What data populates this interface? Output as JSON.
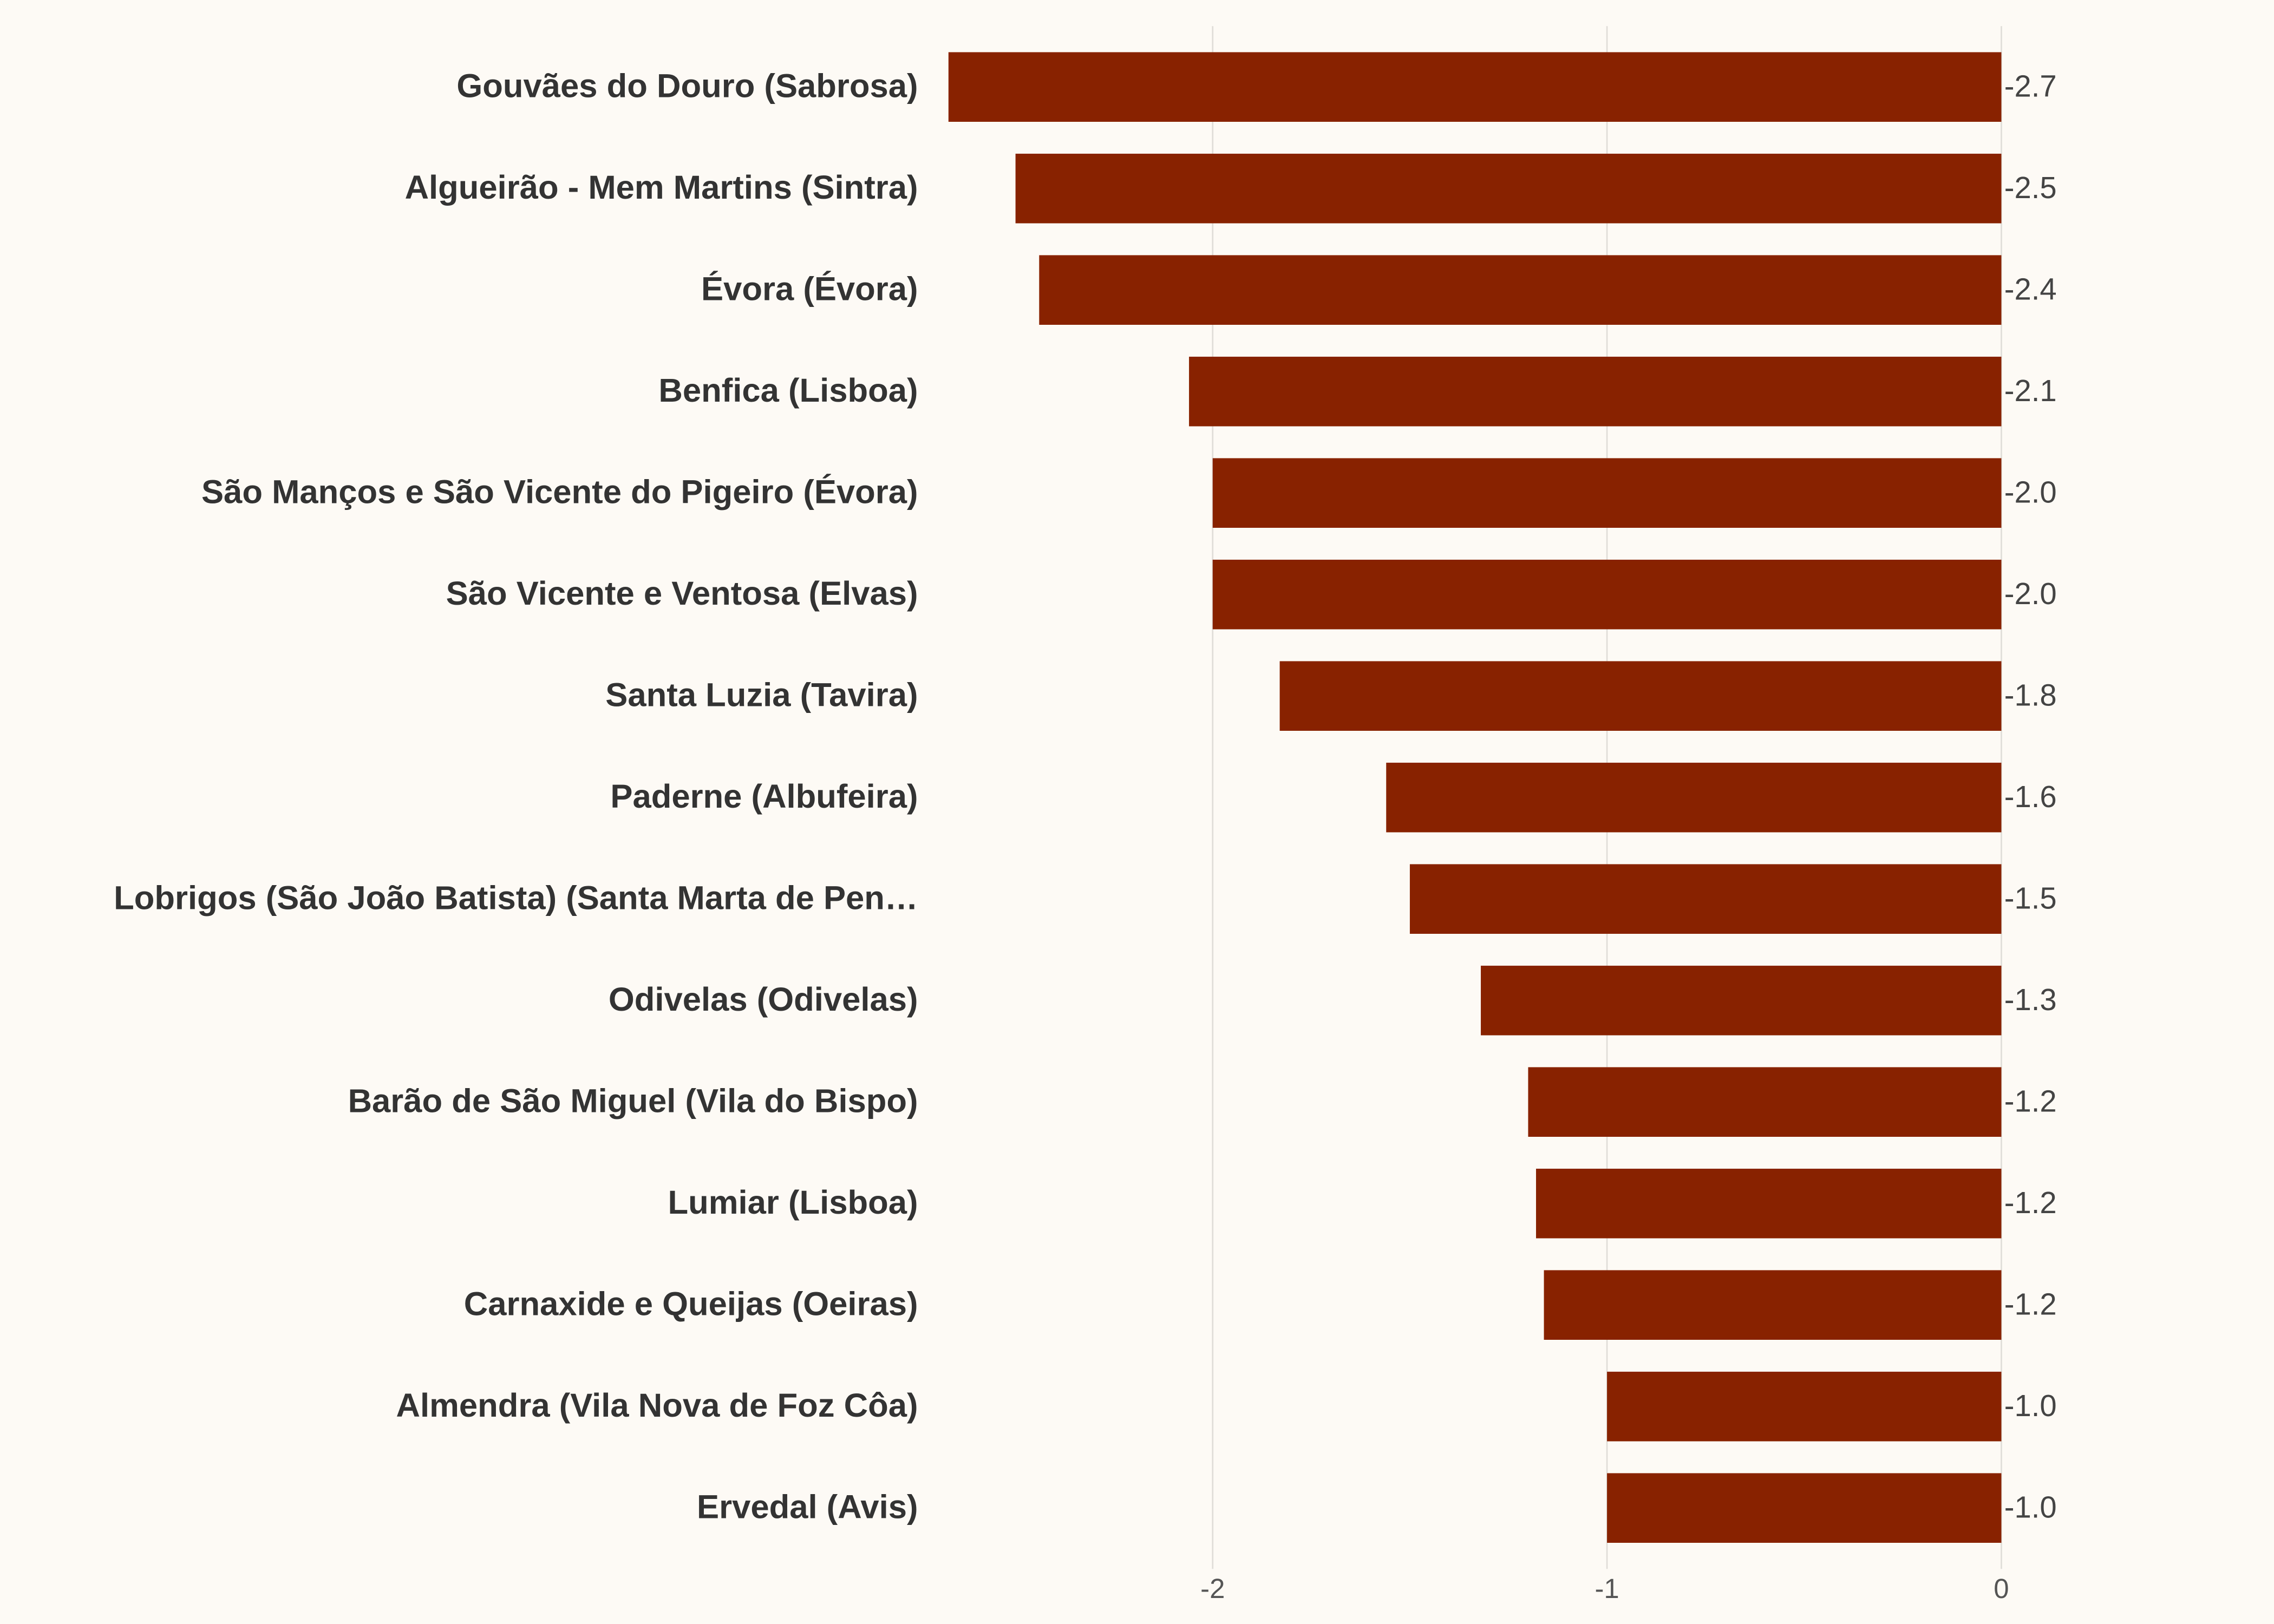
{
  "chart_data": {
    "type": "bar",
    "orientation": "horizontal",
    "categories": [
      "Gouvães do Douro (Sabrosa)",
      "Algueirão - Mem Martins (Sintra)",
      "Évora (Évora)",
      "Benfica (Lisboa)",
      "São Manços e São Vicente do Pigeiro (Évora)",
      "São Vicente e Ventosa (Elvas)",
      "Santa Luzia (Tavira)",
      "Paderne (Albufeira)",
      "Lobrigos (São João Batista) (Santa Marta de Pen…",
      "Odivelas (Odivelas)",
      "Barão de São Miguel (Vila do Bispo)",
      "Lumiar (Lisboa)",
      "Carnaxide e Queijas (Oeiras)",
      "Almendra (Vila Nova de Foz Côa)",
      "Ervedal (Avis)"
    ],
    "values": [
      -2.67,
      -2.5,
      -2.44,
      -2.06,
      -2.0,
      -2.0,
      -1.83,
      -1.56,
      -1.5,
      -1.32,
      -1.2,
      -1.18,
      -1.16,
      -1.0,
      -1.0
    ],
    "value_labels": [
      "-2.7",
      "-2.5",
      "-2.4",
      "-2.1",
      "-2.0",
      "-2.0",
      "-1.8",
      "-1.6",
      "-1.5",
      "-1.3",
      "-1.2",
      "-1.2",
      "-1.2",
      "-1.0",
      "-1.0"
    ],
    "color": "#882200",
    "xlim": [
      -2.67,
      0
    ],
    "xticks": [
      -2,
      -1,
      0
    ],
    "grid": true
  }
}
